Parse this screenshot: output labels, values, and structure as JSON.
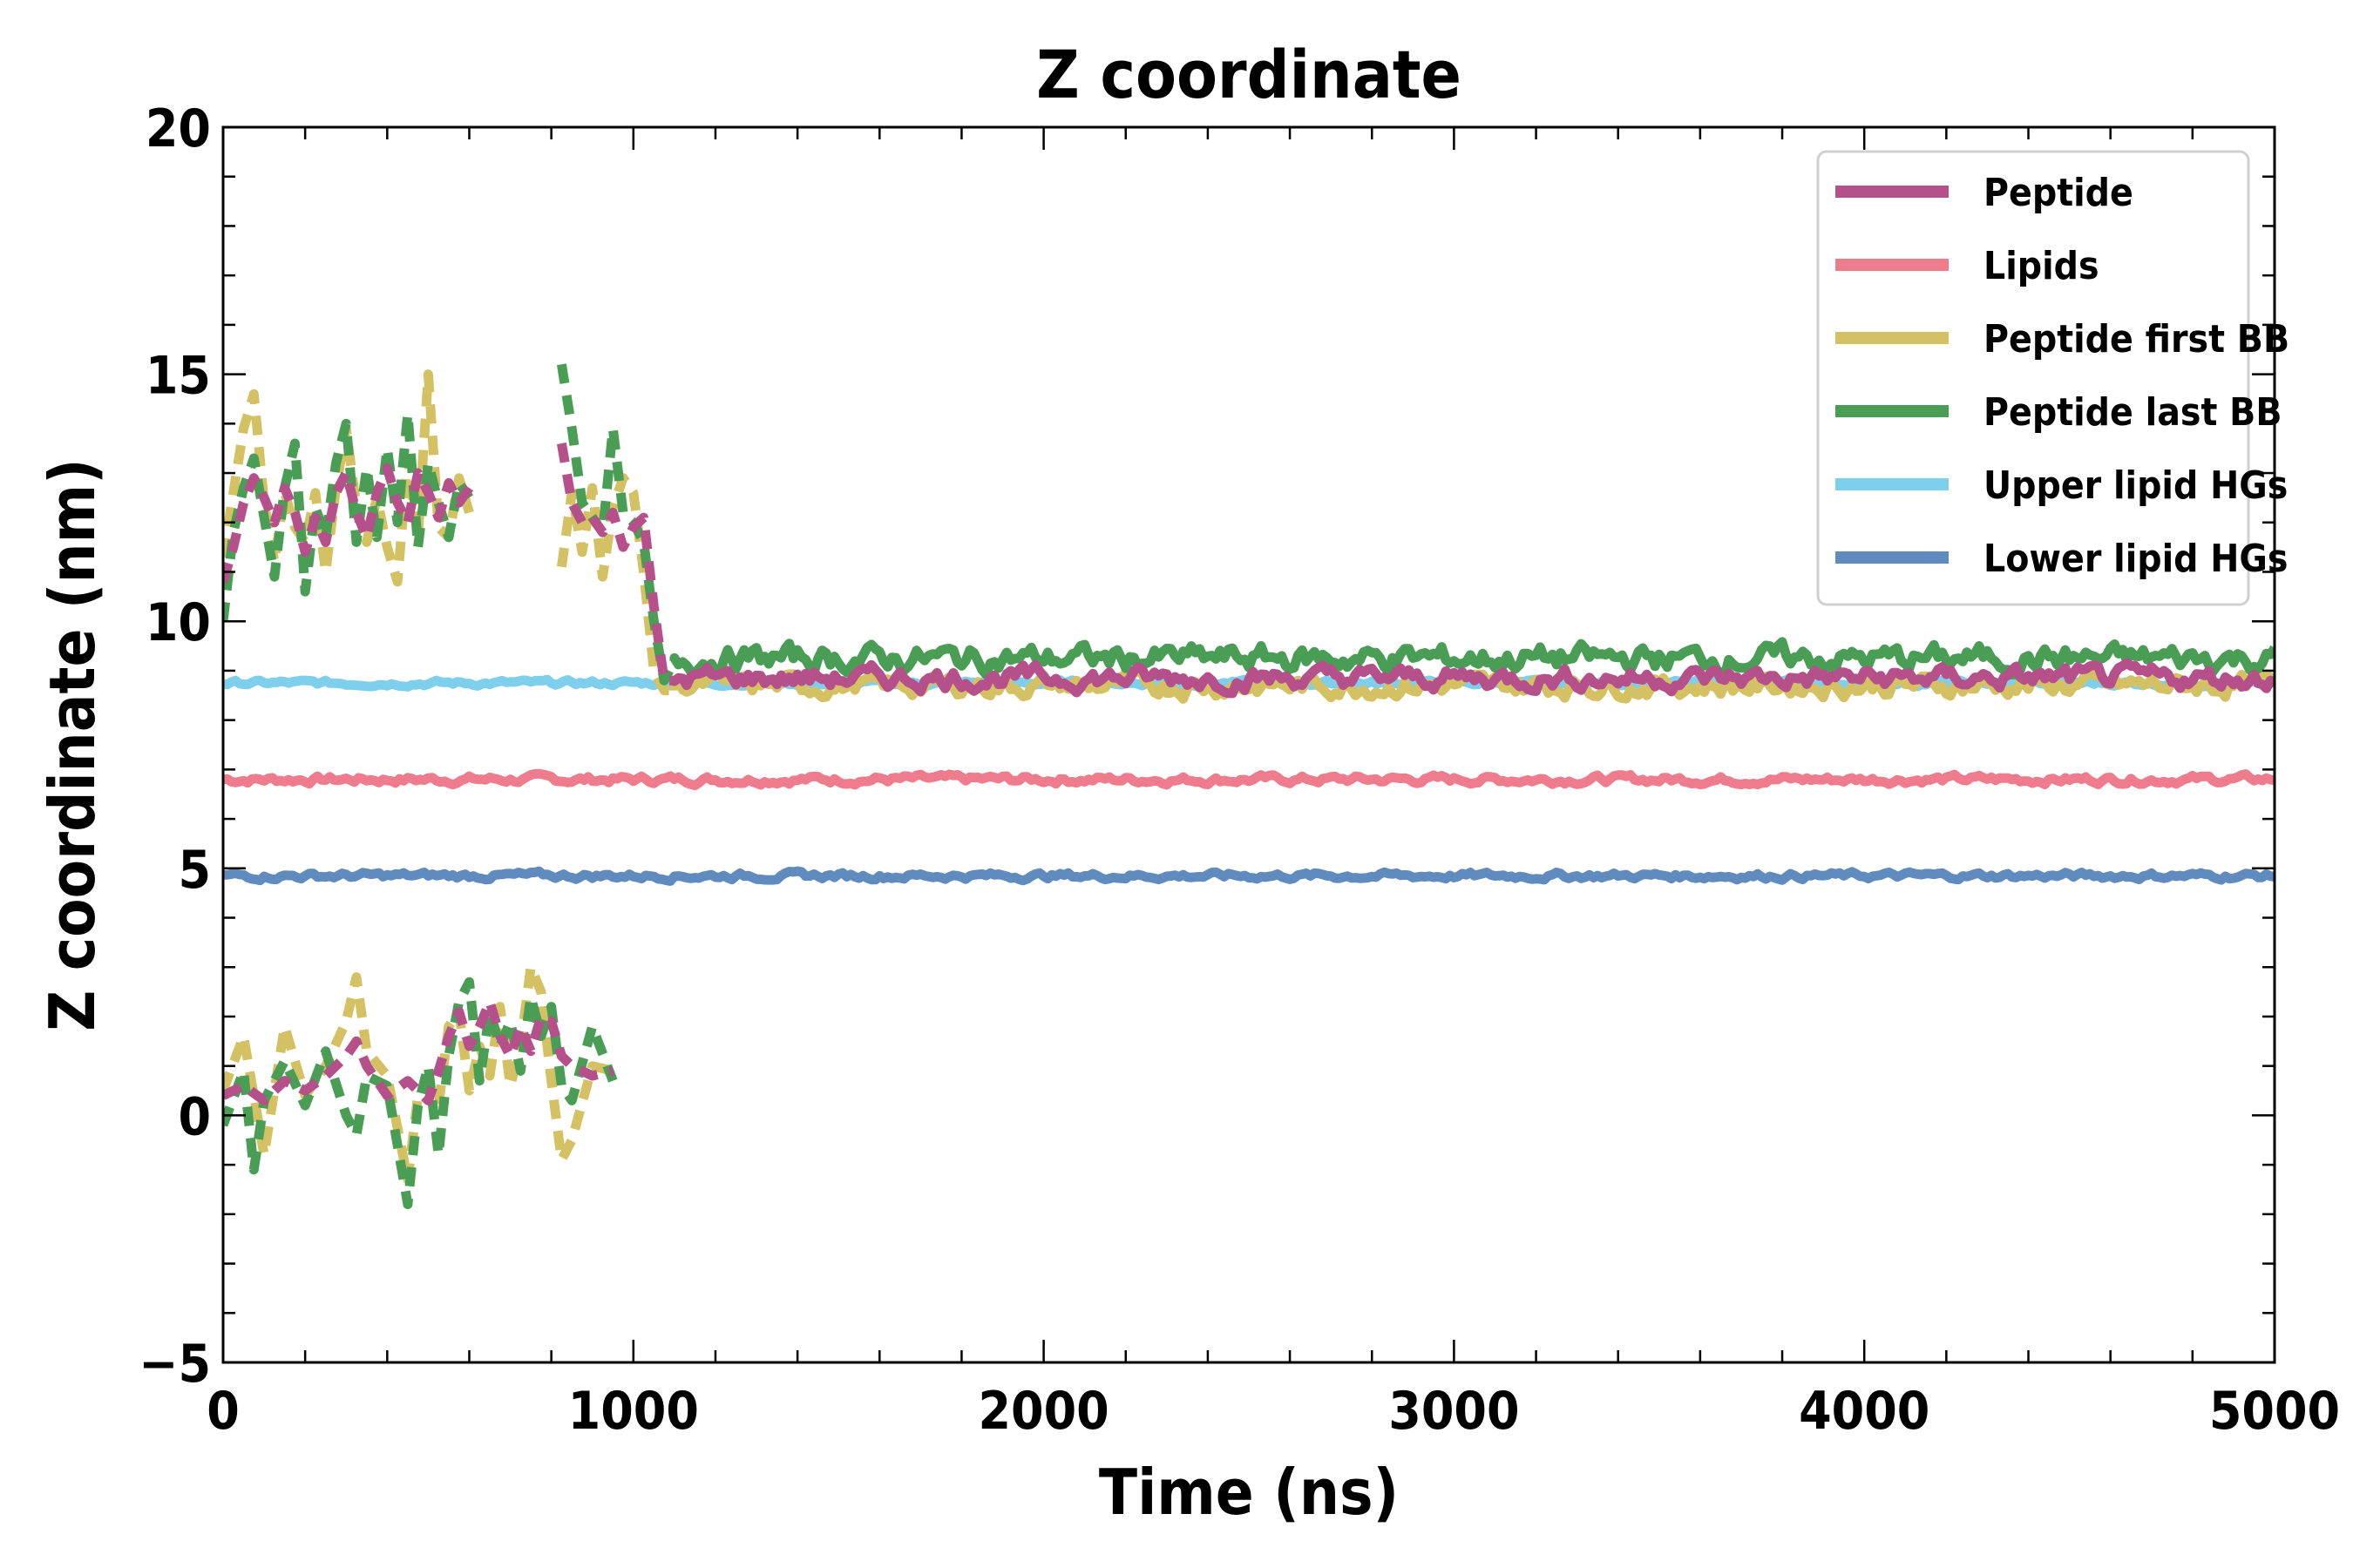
{
  "chart_data": {
    "type": "line",
    "title": "Z coordinate",
    "xlabel": "Time (ns)",
    "ylabel": "Z coordinate (nm)",
    "xlim": [
      0,
      5000
    ],
    "ylim": [
      -5,
      20
    ],
    "xticks": [
      0,
      1000,
      2000,
      3000,
      4000,
      5000
    ],
    "yticks": [
      -5,
      0,
      5,
      10,
      15,
      20
    ],
    "ytick_labels": [
      "−5",
      "0",
      "5",
      "10",
      "15",
      "20"
    ],
    "grid": false,
    "legend_position": "top-right",
    "series": [
      {
        "name": "Peptide",
        "color": "#b5508a",
        "segments_upper": [
          [
            0,
            10.8
          ],
          [
            25,
            11.5
          ],
          [
            50,
            12.4
          ],
          [
            75,
            12.9
          ],
          [
            100,
            12.5
          ],
          [
            125,
            12.0
          ],
          [
            150,
            12.7
          ],
          [
            175,
            12.2
          ],
          [
            200,
            11.4
          ],
          [
            225,
            12.1
          ],
          [
            250,
            11.6
          ],
          [
            275,
            12.6
          ],
          [
            300,
            13.0
          ],
          [
            325,
            12.2
          ],
          [
            350,
            11.7
          ],
          [
            375,
            12.6
          ],
          [
            400,
            13.1
          ],
          [
            425,
            12.4
          ],
          [
            450,
            12.0
          ],
          [
            475,
            13.0
          ],
          [
            500,
            12.6
          ],
          [
            525,
            12.1
          ],
          [
            550,
            12.8
          ],
          [
            575,
            12.4
          ],
          [
            600,
            12.7
          ],
          [
            825,
            13.6
          ],
          [
            850,
            12.4
          ],
          [
            875,
            12.0
          ],
          [
            900,
            12.1
          ],
          [
            925,
            11.8
          ],
          [
            950,
            12.2
          ],
          [
            975,
            11.5
          ],
          [
            1000,
            11.9
          ],
          [
            1025,
            12.1
          ],
          [
            1050,
            10.3
          ],
          [
            1075,
            8.8
          ],
          [
            1100,
            8.8
          ]
        ],
        "segments_lower": [
          [
            0,
            0.4
          ],
          [
            50,
            0.6
          ],
          [
            100,
            0.3
          ],
          [
            150,
            0.7
          ],
          [
            200,
            0.5
          ],
          [
            250,
            0.8
          ],
          [
            300,
            1.2
          ],
          [
            325,
            1.5
          ],
          [
            350,
            1.0
          ],
          [
            400,
            0.4
          ],
          [
            450,
            0.7
          ],
          [
            500,
            0.3
          ],
          [
            525,
            0.9
          ],
          [
            550,
            1.6
          ],
          [
            575,
            2.1
          ],
          [
            600,
            1.4
          ],
          [
            625,
            1.8
          ],
          [
            650,
            2.3
          ],
          [
            675,
            1.6
          ],
          [
            700,
            1.2
          ],
          [
            725,
            1.8
          ],
          [
            750,
            1.3
          ],
          [
            775,
            2.0
          ],
          [
            800,
            1.9
          ],
          [
            825,
            1.2
          ],
          [
            850,
            1.0
          ],
          [
            900,
            0.8
          ],
          [
            950,
            0.9
          ]
        ],
        "mean": 8.85,
        "noise": 0.15,
        "start": 1100,
        "end": 5000
      },
      {
        "name": "Lipids",
        "color": "#ee7c8d",
        "mean": 6.8,
        "noise": 0.06,
        "start": 0,
        "end": 5000
      },
      {
        "name": "Peptide first BB",
        "color": "#d4c163",
        "segments_upper": [
          [
            0,
            11.3
          ],
          [
            25,
            12.6
          ],
          [
            50,
            13.9
          ],
          [
            75,
            14.6
          ],
          [
            100,
            12.4
          ],
          [
            125,
            11.2
          ],
          [
            150,
            12.6
          ],
          [
            175,
            11.9
          ],
          [
            200,
            11.6
          ],
          [
            225,
            12.6
          ],
          [
            250,
            11.0
          ],
          [
            275,
            12.7
          ],
          [
            300,
            13.9
          ],
          [
            325,
            12.3
          ],
          [
            350,
            11.6
          ],
          [
            375,
            12.5
          ],
          [
            400,
            11.5
          ],
          [
            425,
            10.8
          ],
          [
            450,
            13.3
          ],
          [
            475,
            11.7
          ],
          [
            500,
            15.0
          ],
          [
            525,
            11.9
          ],
          [
            550,
            11.7
          ],
          [
            575,
            12.9
          ],
          [
            600,
            12.2
          ],
          [
            825,
            11.1
          ],
          [
            850,
            12.6
          ],
          [
            875,
            11.4
          ],
          [
            900,
            12.7
          ],
          [
            925,
            10.9
          ],
          [
            950,
            12.3
          ],
          [
            975,
            12.9
          ],
          [
            1000,
            12.6
          ],
          [
            1025,
            11.0
          ],
          [
            1050,
            9.0
          ],
          [
            1075,
            8.6
          ],
          [
            1100,
            8.6
          ]
        ],
        "segments_lower": [
          [
            0,
            0.5
          ],
          [
            50,
            1.6
          ],
          [
            100,
            -0.8
          ],
          [
            150,
            1.8
          ],
          [
            200,
            0.4
          ],
          [
            250,
            1.0
          ],
          [
            300,
            1.9
          ],
          [
            325,
            2.8
          ],
          [
            350,
            1.3
          ],
          [
            400,
            0.8
          ],
          [
            450,
            -1.3
          ],
          [
            475,
            0.4
          ],
          [
            500,
            0.6
          ],
          [
            525,
            0.2
          ],
          [
            550,
            1.8
          ],
          [
            575,
            2.1
          ],
          [
            600,
            0.5
          ],
          [
            625,
            1.4
          ],
          [
            650,
            0.8
          ],
          [
            675,
            2.2
          ],
          [
            700,
            0.6
          ],
          [
            725,
            1.4
          ],
          [
            750,
            3.0
          ],
          [
            775,
            2.5
          ],
          [
            800,
            0.7
          ],
          [
            825,
            -0.9
          ],
          [
            850,
            -0.5
          ],
          [
            900,
            1.0
          ],
          [
            950,
            0.9
          ]
        ],
        "mean": 8.7,
        "noise": 0.15,
        "start": 1100,
        "end": 5000
      },
      {
        "name": "Peptide last BB",
        "color": "#4a9d55",
        "segments_upper": [
          [
            0,
            10.0
          ],
          [
            25,
            11.8
          ],
          [
            50,
            12.7
          ],
          [
            75,
            13.3
          ],
          [
            100,
            12.1
          ],
          [
            125,
            10.9
          ],
          [
            150,
            12.7
          ],
          [
            175,
            13.6
          ],
          [
            200,
            10.6
          ],
          [
            225,
            12.3
          ],
          [
            250,
            11.7
          ],
          [
            275,
            13.2
          ],
          [
            300,
            14.0
          ],
          [
            325,
            11.6
          ],
          [
            350,
            13.1
          ],
          [
            375,
            11.7
          ],
          [
            400,
            13.5
          ],
          [
            425,
            12.0
          ],
          [
            450,
            14.2
          ],
          [
            475,
            11.5
          ],
          [
            500,
            13.2
          ],
          [
            525,
            12.4
          ],
          [
            550,
            11.7
          ],
          [
            575,
            12.8
          ],
          [
            600,
            12.5
          ],
          [
            825,
            15.2
          ],
          [
            850,
            13.9
          ],
          [
            875,
            12.4
          ],
          [
            900,
            12.1
          ],
          [
            925,
            11.8
          ],
          [
            950,
            13.9
          ],
          [
            975,
            12.2
          ],
          [
            1000,
            12.0
          ],
          [
            1025,
            11.6
          ],
          [
            1050,
            10.0
          ],
          [
            1075,
            8.8
          ],
          [
            1100,
            9.2
          ]
        ],
        "segments_lower": [
          [
            0,
            -0.2
          ],
          [
            50,
            0.9
          ],
          [
            75,
            -1.1
          ],
          [
            100,
            0.3
          ],
          [
            150,
            1.1
          ],
          [
            200,
            0.2
          ],
          [
            250,
            1.3
          ],
          [
            300,
            0.0
          ],
          [
            325,
            -0.4
          ],
          [
            350,
            0.8
          ],
          [
            400,
            0.6
          ],
          [
            450,
            -1.8
          ],
          [
            475,
            0.2
          ],
          [
            500,
            1.0
          ],
          [
            525,
            -0.8
          ],
          [
            550,
            1.2
          ],
          [
            575,
            2.3
          ],
          [
            600,
            2.7
          ],
          [
            625,
            0.7
          ],
          [
            650,
            2.1
          ],
          [
            675,
            1.4
          ],
          [
            700,
            1.9
          ],
          [
            725,
            0.9
          ],
          [
            750,
            2.4
          ],
          [
            775,
            1.6
          ],
          [
            800,
            2.2
          ],
          [
            825,
            0.6
          ],
          [
            850,
            0.3
          ],
          [
            900,
            1.8
          ],
          [
            950,
            0.7
          ]
        ],
        "mean": 9.25,
        "noise": 0.18,
        "start": 1100,
        "end": 5000
      },
      {
        "name": "Upper lipid HGs",
        "color": "#7ecfec",
        "mean": 8.75,
        "noise": 0.04,
        "start": 0,
        "end": 5000
      },
      {
        "name": "Lower lipid HGs",
        "color": "#5f8bbf",
        "mean": 4.85,
        "noise": 0.05,
        "start": 0,
        "end": 5000
      }
    ]
  }
}
